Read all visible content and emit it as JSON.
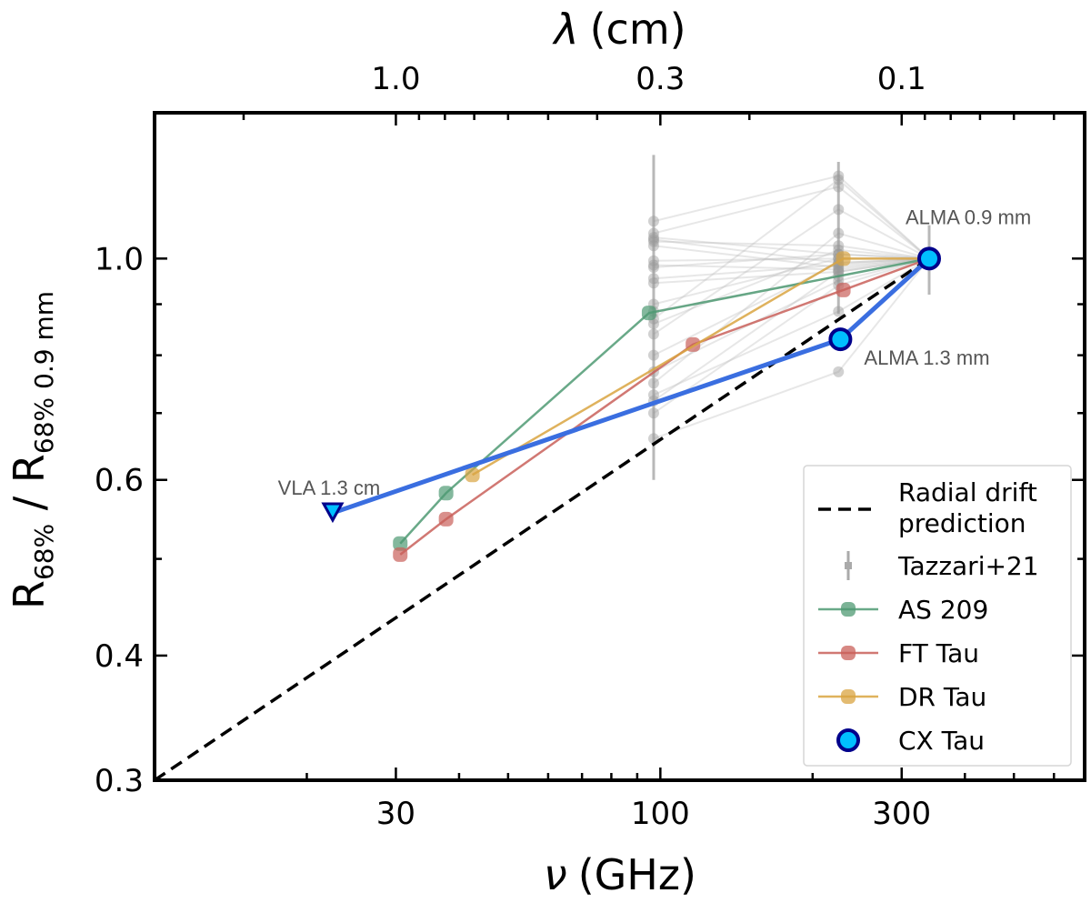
{
  "chart_data": {
    "type": "line",
    "title": "",
    "xlabel": "ν (GHz)",
    "xlabel_symbol": "ν",
    "xlabel_unit": "(GHz)",
    "ylabel": "R68% / R68% 0.9 mm",
    "ylabel_parts": {
      "main": "R",
      "sub1": "68%",
      "slash": " / R",
      "sub2": "68% 0.9 mm"
    },
    "top_xlabel": "λ (cm)",
    "top_xlabel_symbol": "λ",
    "top_xlabel_unit": "(cm)",
    "xscale": "log",
    "yscale": "log",
    "xlim": [
      10,
      690
    ],
    "ylim": [
      0.3,
      1.4
    ],
    "grid": false,
    "x_ticks": [
      {
        "value": 30,
        "label": "30"
      },
      {
        "value": 100,
        "label": "100"
      },
      {
        "value": 300,
        "label": "300"
      }
    ],
    "x_minor_ticks": [
      20,
      40,
      50,
      60,
      70,
      80,
      90,
      200,
      400,
      500,
      600
    ],
    "y_ticks": [
      {
        "value": 0.3,
        "label": "0.3"
      },
      {
        "value": 0.4,
        "label": "0.4"
      },
      {
        "value": 0.6,
        "label": "0.6"
      },
      {
        "value": 1.0,
        "label": "1.0"
      }
    ],
    "y_minor_ticks": [
      0.5,
      0.7,
      0.8,
      0.9
    ],
    "top_x_ticks": [
      {
        "value_cm": 1.0,
        "label": "1.0"
      },
      {
        "value_cm": 0.3,
        "label": "0.3"
      },
      {
        "value_cm": 0.1,
        "label": "0.1"
      }
    ],
    "top_x_minor_ticks_cm": [
      2.0,
      0.9,
      0.8,
      0.7,
      0.6,
      0.5,
      0.4,
      0.2,
      0.09,
      0.08,
      0.07,
      0.06,
      0.05
    ],
    "legend_position": "lower-right",
    "legend": [
      {
        "label": "Radial drift\nprediction",
        "line1": "Radial drift",
        "line2": "prediction",
        "style": "dashed",
        "color": "#000000"
      },
      {
        "label": "Tazzari+21",
        "style": "errorbar",
        "color": "#aaaaaa"
      },
      {
        "label": "AS 209",
        "style": "line-marker",
        "color": "#4f9a73"
      },
      {
        "label": "FT Tau",
        "style": "line-marker",
        "color": "#c9605a"
      },
      {
        "label": "DR Tau",
        "style": "line-marker",
        "color": "#d9a441"
      },
      {
        "label": "CX Tau",
        "style": "marker",
        "color": "#00bfff",
        "edge": "#00008b"
      }
    ],
    "series": [
      {
        "name": "Radial drift prediction",
        "type": "dashed-line",
        "color": "#000000",
        "x": [
          10,
          340
        ],
        "y": [
          0.3,
          1.0
        ]
      },
      {
        "name": "AS 209",
        "color": "#4f9a73",
        "x": [
          30.6,
          37.7,
          95,
          340
        ],
        "y": [
          0.518,
          0.582,
          0.882,
          1.0
        ]
      },
      {
        "name": "FT Tau",
        "color": "#c9605a",
        "x": [
          30.6,
          37.7,
          116,
          230,
          340
        ],
        "y": [
          0.505,
          0.548,
          0.82,
          0.93,
          1.0
        ]
      },
      {
        "name": "DR Tau",
        "color": "#d9a441",
        "x": [
          42.5,
          230,
          340
        ],
        "y": [
          0.607,
          1.0,
          1.0
        ]
      },
      {
        "name": "CX Tau",
        "color": "#3a6ee0",
        "marker_fill": "#00bfff",
        "marker_edge": "#00008b",
        "points": [
          {
            "x": 22.5,
            "y": 0.556,
            "marker": "triangle-down",
            "label": "VLA 1.3 cm",
            "upper_limit": true
          },
          {
            "x": 227,
            "y": 0.83,
            "marker": "circle",
            "label": "ALMA 1.3 mm"
          },
          {
            "x": 340,
            "y": 1.0,
            "marker": "circle",
            "label": "ALMA 0.9 mm"
          }
        ]
      }
    ],
    "tazzari": {
      "name": "Tazzari+21",
      "color": "#999999",
      "x_band3": 97,
      "x_band6": 225,
      "x_band7": 340,
      "errorbars": [
        {
          "x": 97,
          "ylow": 0.6,
          "yhigh": 1.27
        },
        {
          "x": 225,
          "ylow": 0.88,
          "yhigh": 1.25
        },
        {
          "x": 340,
          "ylow": 0.92,
          "yhigh": 1.08
        }
      ],
      "tracks": [
        {
          "y3": 1.09,
          "y6": 1.21
        },
        {
          "y3": 1.06,
          "y6": 1.18
        },
        {
          "y3": 1.05,
          "y6": 1.01
        },
        {
          "y3": 1.045,
          "y6": 0.99
        },
        {
          "y3": 1.04,
          "y6": 1.03
        },
        {
          "y3": 1.03,
          "y6": 0.98
        },
        {
          "y3": 0.995,
          "y6": 1.0
        },
        {
          "y3": 0.985,
          "y6": 0.975
        },
        {
          "y3": 0.98,
          "y6": 1.01
        },
        {
          "y3": 0.955,
          "y6": 0.985
        },
        {
          "y3": 0.945,
          "y6": 0.97
        },
        {
          "y3": 0.9,
          "y6": 1.0
        },
        {
          "y3": 0.885,
          "y6": 0.96
        },
        {
          "y3": 0.87,
          "y6": 1.2
        },
        {
          "y3": 0.86,
          "y6": 1.02
        },
        {
          "y3": 0.84,
          "y6": 1.12
        },
        {
          "y3": 0.8,
          "y6": 0.99
        },
        {
          "y3": 0.77,
          "y6": 0.95
        },
        {
          "y3": 0.75,
          "y6": 1.06
        },
        {
          "y3": 0.73,
          "y6": 0.885
        },
        {
          "y3": 0.72,
          "y6": 0.97
        },
        {
          "y3": 0.7,
          "y6": 0.94
        },
        {
          "y3": 0.66,
          "y6": 0.77
        }
      ]
    }
  }
}
